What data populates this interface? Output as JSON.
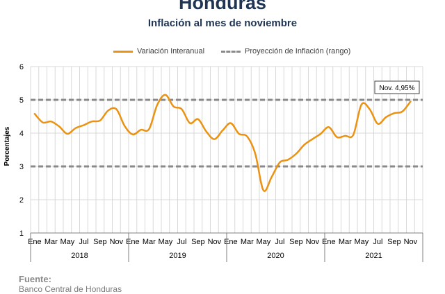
{
  "header": {
    "title": "Honduras",
    "subtitle": "Inflación al mes de noviembre"
  },
  "legend": {
    "series_label": "Variación Interanual",
    "projection_label": "Proyección de Inflación (rango)"
  },
  "annotation": "Nov. 4,95%",
  "source": {
    "title": "Fuente:",
    "text": "Banco Central de Honduras"
  },
  "chart_data": {
    "type": "line",
    "ylabel": "Porcentajes",
    "ylim": [
      1,
      6
    ],
    "yticks": [
      1,
      2,
      3,
      4,
      5,
      6
    ],
    "grid": true,
    "legend_position": "top",
    "month_ticks": [
      "Ene",
      "Mar",
      "May",
      "Jul",
      "Sep",
      "Nov",
      "Ene",
      "Mar",
      "May",
      "Jul",
      "Sep",
      "Nov",
      "Ene",
      "Mar",
      "May",
      "Jul",
      "Sep",
      "Nov",
      "Ene",
      "Mar",
      "May",
      "Jul",
      "Sep",
      "Nov"
    ],
    "years": [
      "2018",
      "2019",
      "2020",
      "2021"
    ],
    "projection_range": [
      3,
      5
    ],
    "series": [
      {
        "name": "Variación Interanual",
        "color": "#ec9212",
        "x": [
          "2018-01",
          "2018-02",
          "2018-03",
          "2018-04",
          "2018-05",
          "2018-06",
          "2018-07",
          "2018-08",
          "2018-09",
          "2018-10",
          "2018-11",
          "2018-12",
          "2019-01",
          "2019-02",
          "2019-03",
          "2019-04",
          "2019-05",
          "2019-06",
          "2019-07",
          "2019-08",
          "2019-09",
          "2019-10",
          "2019-11",
          "2019-12",
          "2020-01",
          "2020-02",
          "2020-03",
          "2020-04",
          "2020-05",
          "2020-06",
          "2020-07",
          "2020-08",
          "2020-09",
          "2020-10",
          "2020-11",
          "2020-12",
          "2021-01",
          "2021-02",
          "2021-03",
          "2021-04",
          "2021-05",
          "2021-06",
          "2021-07",
          "2021-08",
          "2021-09",
          "2021-10",
          "2021-11"
        ],
        "values": [
          4.58,
          4.32,
          4.35,
          4.2,
          3.98,
          4.15,
          4.24,
          4.35,
          4.38,
          4.68,
          4.72,
          4.22,
          3.96,
          4.1,
          4.12,
          4.85,
          5.15,
          4.8,
          4.72,
          4.3,
          4.42,
          4.05,
          3.82,
          4.08,
          4.3,
          3.98,
          3.9,
          3.38,
          2.28,
          2.68,
          3.12,
          3.2,
          3.38,
          3.65,
          3.82,
          3.98,
          4.18,
          3.88,
          3.92,
          3.95,
          4.86,
          4.72,
          4.28,
          4.48,
          4.6,
          4.65,
          4.95
        ]
      }
    ]
  }
}
